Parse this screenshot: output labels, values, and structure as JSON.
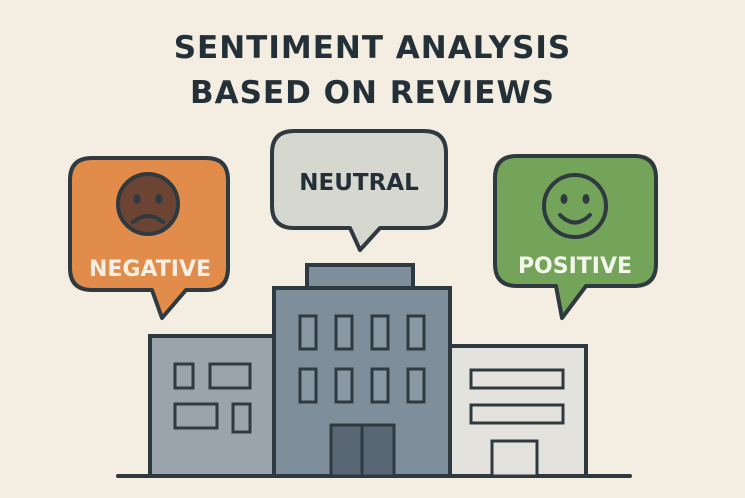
{
  "title": {
    "line1": "SENTIMENT ANALYSIS",
    "line2": "BASED ON REVIEWS"
  },
  "bubbles": {
    "negative": {
      "label": "NEGATIVE",
      "icon": "sad-face-icon",
      "color": "#e18c4a"
    },
    "neutral": {
      "label": "NEUTRAL",
      "icon": "none",
      "color": "#d6d7cf"
    },
    "positive": {
      "label": "POSITIVE",
      "icon": "happy-face-icon",
      "color": "#74a35a"
    }
  },
  "colors": {
    "background": "#f3ede2",
    "outline": "#2f3a40",
    "building_main": "#7f8e9b",
    "building_left": "#9aa4ac",
    "building_right": "#e4e2dc"
  }
}
